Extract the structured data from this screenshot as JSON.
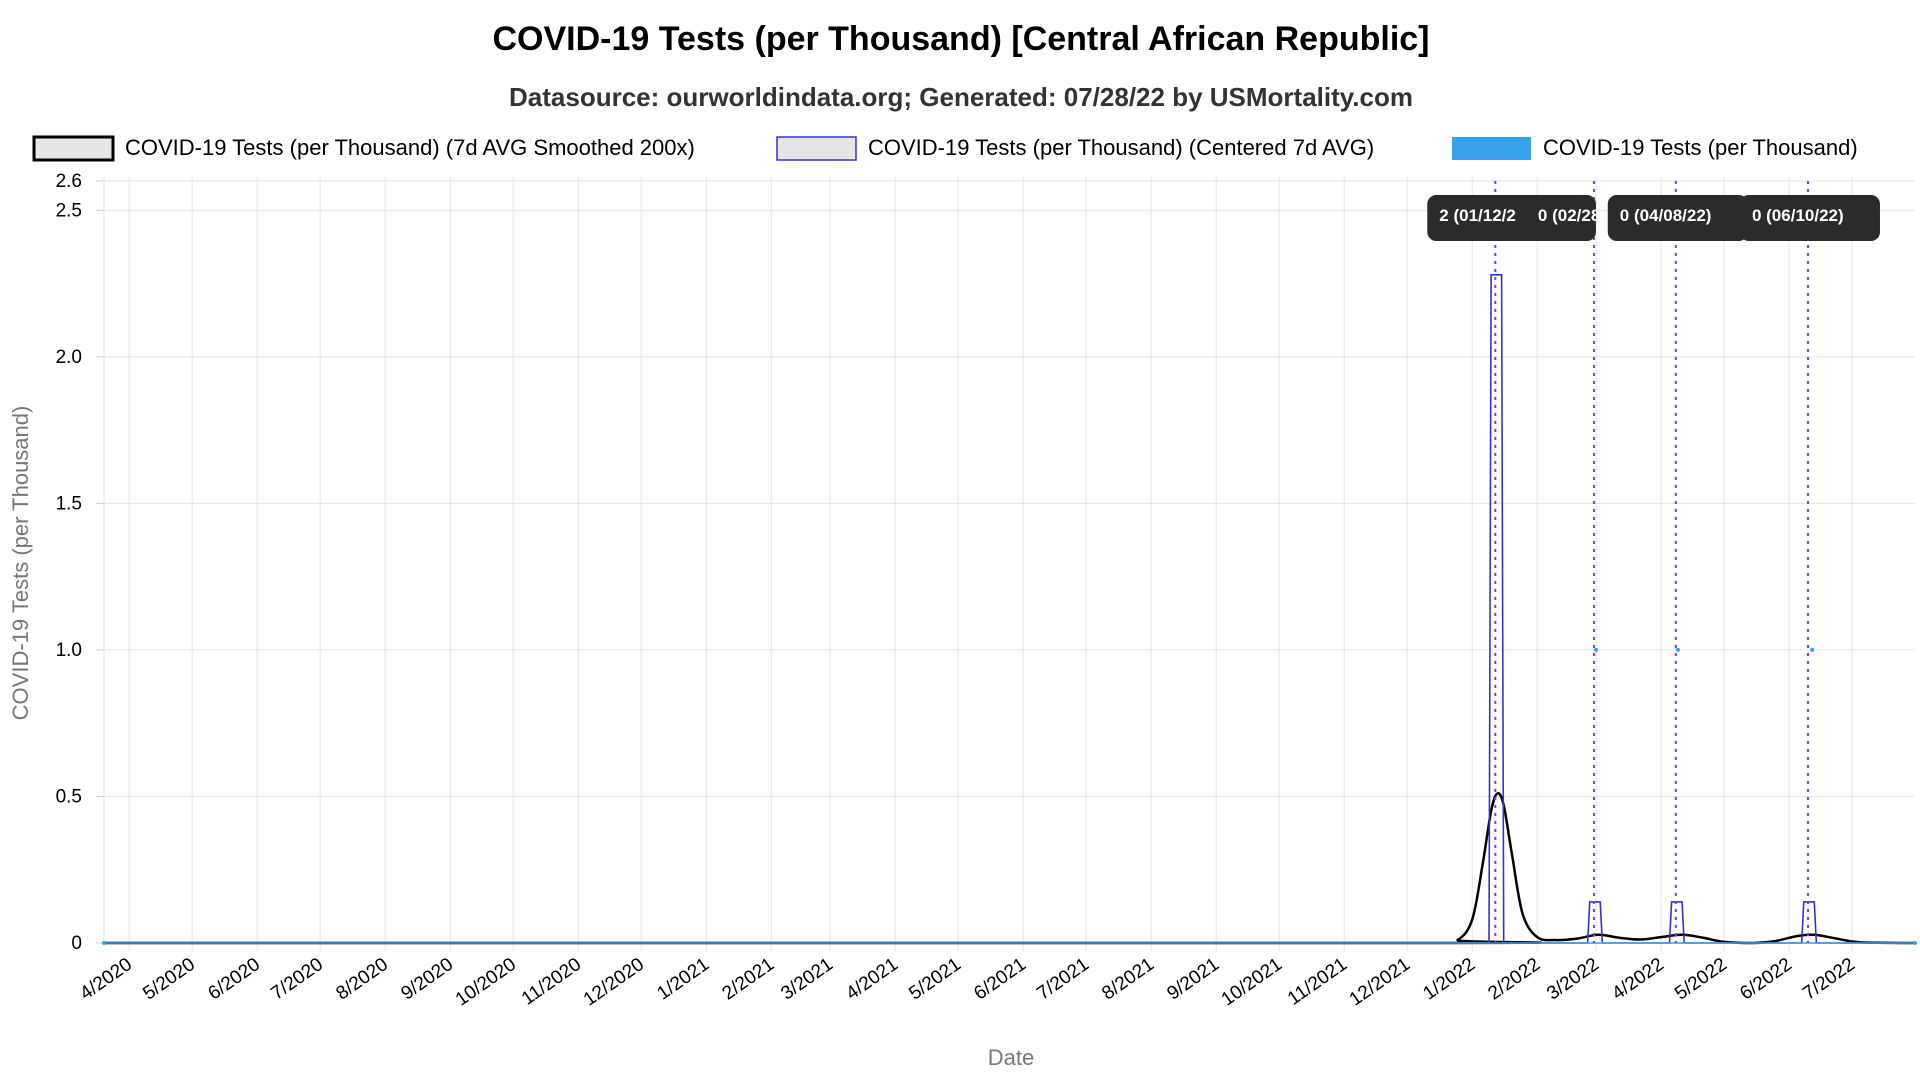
{
  "chart_data": {
    "type": "line",
    "title": "COVID-19 Tests (per Thousand) [Central African Republic]",
    "subtitle": "Datasource: ourworldindata.org; Generated: 07/28/22 by USMortality.com",
    "xlabel": "Date",
    "ylabel": "COVID-19 Tests (per Thousand)",
    "ylim": [
      0,
      2.6
    ],
    "y_ticks": [
      "0",
      "0.5",
      "1.0",
      "1.5",
      "2.0",
      "2.5",
      "2.6"
    ],
    "y_tick_values": [
      0,
      0.5,
      1.0,
      1.5,
      2.0,
      2.5,
      2.6
    ],
    "x_range": [
      "2020-03-20",
      "2022-07-31"
    ],
    "x_ticks": [
      "4/2020",
      "5/2020",
      "6/2020",
      "7/2020",
      "8/2020",
      "9/2020",
      "10/2020",
      "11/2020",
      "12/2020",
      "1/2021",
      "2/2021",
      "3/2021",
      "4/2021",
      "5/2021",
      "6/2021",
      "7/2021",
      "8/2021",
      "9/2021",
      "10/2021",
      "11/2021",
      "12/2021",
      "1/2022",
      "2/2022",
      "3/2022",
      "4/2022",
      "5/2022",
      "6/2022",
      "7/2022"
    ],
    "x_tick_dates": [
      "2020-04-01",
      "2020-05-01",
      "2020-06-01",
      "2020-07-01",
      "2020-08-01",
      "2020-09-01",
      "2020-10-01",
      "2020-11-01",
      "2020-12-01",
      "2021-01-01",
      "2021-02-01",
      "2021-03-01",
      "2021-04-01",
      "2021-05-01",
      "2021-06-01",
      "2021-07-01",
      "2021-08-01",
      "2021-09-01",
      "2021-10-01",
      "2021-11-01",
      "2021-12-01",
      "2022-01-01",
      "2022-02-01",
      "2022-03-01",
      "2022-04-01",
      "2022-05-01",
      "2022-06-01",
      "2022-07-01"
    ],
    "grid": true,
    "legend_position": "top",
    "series": [
      {
        "name": "COVID-19 Tests (per Thousand) (7d AVG Smoothed 200x)",
        "style": "line",
        "color": "#000000",
        "points": [
          [
            "2020-03-20",
            0
          ],
          [
            "2021-12-15",
            0
          ],
          [
            "2021-12-25",
            0.01
          ],
          [
            "2022-01-01",
            0.08
          ],
          [
            "2022-01-06",
            0.27
          ],
          [
            "2022-01-10",
            0.45
          ],
          [
            "2022-01-13",
            0.51
          ],
          [
            "2022-01-16",
            0.47
          ],
          [
            "2022-01-20",
            0.3
          ],
          [
            "2022-01-25",
            0.1
          ],
          [
            "2022-02-01",
            0.02
          ],
          [
            "2022-02-10",
            0.01
          ],
          [
            "2022-02-20",
            0.015
          ],
          [
            "2022-03-02",
            0.028
          ],
          [
            "2022-03-12",
            0.018
          ],
          [
            "2022-03-22",
            0.012
          ],
          [
            "2022-04-01",
            0.02
          ],
          [
            "2022-04-11",
            0.028
          ],
          [
            "2022-04-21",
            0.018
          ],
          [
            "2022-05-01",
            0.004
          ],
          [
            "2022-05-15",
            0.0
          ],
          [
            "2022-05-25",
            0.006
          ],
          [
            "2022-06-05",
            0.024
          ],
          [
            "2022-06-13",
            0.028
          ],
          [
            "2022-06-23",
            0.016
          ],
          [
            "2022-07-05",
            0.002
          ],
          [
            "2022-07-31",
            0
          ]
        ]
      },
      {
        "name": "COVID-19 Tests (per Thousand) (Centered 7d AVG)",
        "style": "step",
        "color": "#3333cc",
        "points": [
          [
            "2020-03-20",
            0
          ],
          [
            "2022-01-09",
            0
          ],
          [
            "2022-01-10",
            2.28
          ],
          [
            "2022-01-15",
            2.28
          ],
          [
            "2022-01-16",
            0
          ],
          [
            "2022-02-25",
            0
          ],
          [
            "2022-02-26",
            0.14
          ],
          [
            "2022-03-03",
            0.14
          ],
          [
            "2022-03-04",
            0
          ],
          [
            "2022-04-05",
            0
          ],
          [
            "2022-04-06",
            0.14
          ],
          [
            "2022-04-11",
            0.14
          ],
          [
            "2022-04-12",
            0
          ],
          [
            "2022-06-07",
            0
          ],
          [
            "2022-06-08",
            0.14
          ],
          [
            "2022-06-13",
            0.14
          ],
          [
            "2022-06-14",
            0
          ],
          [
            "2022-07-31",
            0
          ]
        ]
      },
      {
        "name": "COVID-19 Tests (per Thousand)",
        "style": "points",
        "color": "#36a2eb",
        "points": [
          [
            "2020-03-20",
            0
          ],
          [
            "2022-03-01",
            1.0
          ],
          [
            "2022-04-09",
            1.0
          ],
          [
            "2022-06-12",
            1.0
          ],
          [
            "2022-07-31",
            0
          ]
        ]
      }
    ],
    "tooltips": [
      {
        "label": "2 (01/12/2",
        "date": "2022-01-12"
      },
      {
        "label": "0 (02/28",
        "date": "2022-02-28"
      },
      {
        "label": "0 (04/08/22)",
        "date": "2022-04-08"
      },
      {
        "label": "0 (06/10/22)",
        "date": "2022-06-10"
      }
    ]
  }
}
